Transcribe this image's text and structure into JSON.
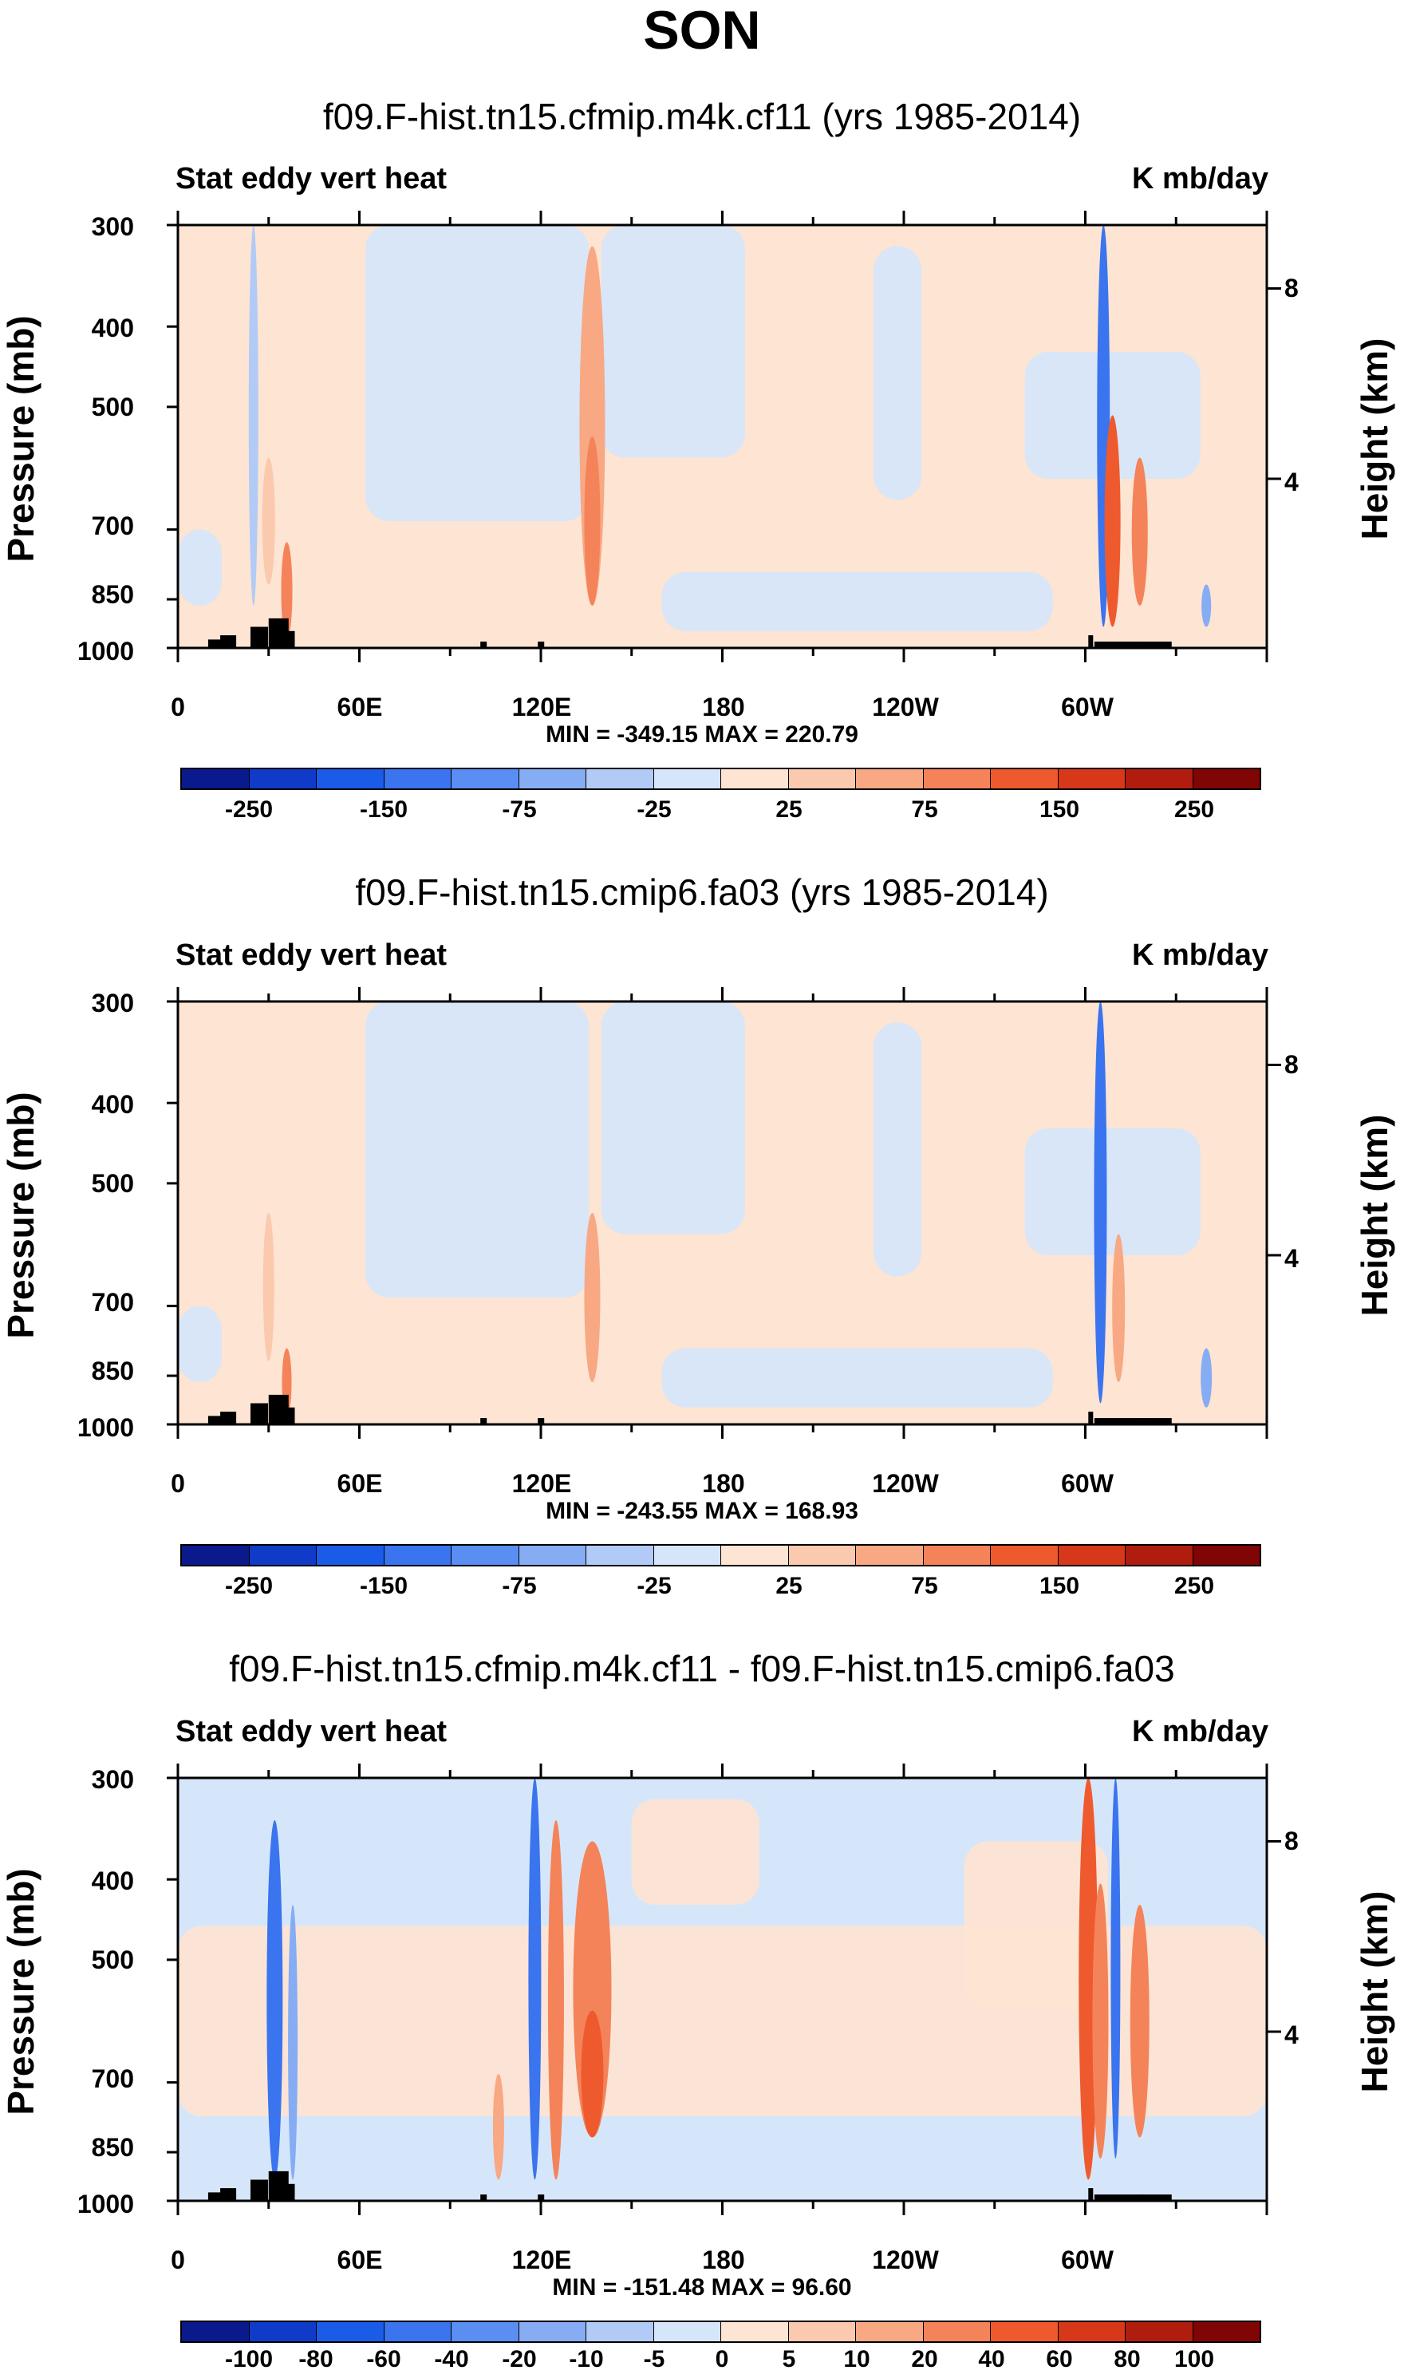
{
  "figure_title": "SON",
  "colors": {
    "levels_abs": [
      "#0a1a8c",
      "#0f3bc8",
      "#1a5ce8",
      "#3a74ee",
      "#5a8ef2",
      "#86acf4",
      "#b2cbf6",
      "#d6e6fa",
      "#fde4d3",
      "#fbc9ad",
      "#f8a883",
      "#f4835a",
      "#ee5a2e",
      "#d8381a",
      "#b01d0e",
      "#800606"
    ],
    "levels_diff": [
      "#0a1a8c",
      "#0f3bc8",
      "#1a5ce8",
      "#3a74ee",
      "#5a8ef2",
      "#86acf4",
      "#b2cbf6",
      "#d6e6fa",
      "#fde4d3",
      "#fbc9ad",
      "#f8a883",
      "#f4835a",
      "#ee5a2e",
      "#d8381a",
      "#b01d0e",
      "#800606"
    ]
  },
  "chart_data": [
    {
      "type": "heatmap",
      "title": "f09.F-hist.tn15.cfmip.m4k.cf11 (yrs 1985-2014)",
      "left_label": "Stat eddy vert heat",
      "right_label": "K mb/day",
      "ylabel": "Pressure (mb)",
      "y2label": "Height (km)",
      "yticks": [
        "300",
        "400",
        "500",
        "700",
        "850",
        "1000"
      ],
      "y2ticks": [
        "8",
        "4"
      ],
      "xticks": [
        "0",
        "60E",
        "120E",
        "180",
        "120W",
        "60W"
      ],
      "xlim": [
        0,
        360
      ],
      "ylim": [
        1000,
        300
      ],
      "min_max": "MIN = -349.15   MAX = 220.79",
      "colorbar_labels": [
        "-250",
        "-150",
        "-75",
        "-25",
        "25",
        "75",
        "150",
        "250"
      ],
      "colorbar_levels": [
        -300,
        -250,
        -200,
        -150,
        -100,
        -75,
        -50,
        -25,
        0,
        25,
        50,
        75,
        100,
        150,
        200,
        250,
        300
      ]
    },
    {
      "type": "heatmap",
      "title": "f09.F-hist.tn15.cmip6.fa03 (yrs 1985-2014)",
      "left_label": "Stat eddy vert heat",
      "right_label": "K mb/day",
      "ylabel": "Pressure (mb)",
      "y2label": "Height (km)",
      "yticks": [
        "300",
        "400",
        "500",
        "700",
        "850",
        "1000"
      ],
      "y2ticks": [
        "8",
        "4"
      ],
      "xticks": [
        "0",
        "60E",
        "120E",
        "180",
        "120W",
        "60W"
      ],
      "xlim": [
        0,
        360
      ],
      "ylim": [
        1000,
        300
      ],
      "min_max": "MIN = -243.55   MAX = 168.93",
      "colorbar_labels": [
        "-250",
        "-150",
        "-75",
        "-25",
        "25",
        "75",
        "150",
        "250"
      ],
      "colorbar_levels": [
        -300,
        -250,
        -200,
        -150,
        -100,
        -75,
        -50,
        -25,
        0,
        25,
        50,
        75,
        100,
        150,
        200,
        250,
        300
      ]
    },
    {
      "type": "heatmap",
      "title": "f09.F-hist.tn15.cfmip.m4k.cf11 - f09.F-hist.tn15.cmip6.fa03",
      "left_label": "Stat eddy vert heat",
      "right_label": "K mb/day",
      "ylabel": "Pressure (mb)",
      "y2label": "Height (km)",
      "yticks": [
        "300",
        "400",
        "500",
        "700",
        "850",
        "1000"
      ],
      "y2ticks": [
        "8",
        "4"
      ],
      "xticks": [
        "0",
        "60E",
        "120E",
        "180",
        "120W",
        "60W"
      ],
      "xlim": [
        0,
        360
      ],
      "ylim": [
        1000,
        300
      ],
      "min_max": "MIN = -151.48   MAX = 96.60",
      "colorbar_labels": [
        "-100",
        "-80",
        "-60",
        "-40",
        "-20",
        "-10",
        "-5",
        "0",
        "5",
        "10",
        "20",
        "40",
        "60",
        "80",
        "100"
      ],
      "colorbar_levels": [
        -120,
        -100,
        -80,
        -60,
        -40,
        -20,
        -10,
        -5,
        0,
        5,
        10,
        20,
        40,
        60,
        80,
        100,
        120
      ]
    }
  ]
}
